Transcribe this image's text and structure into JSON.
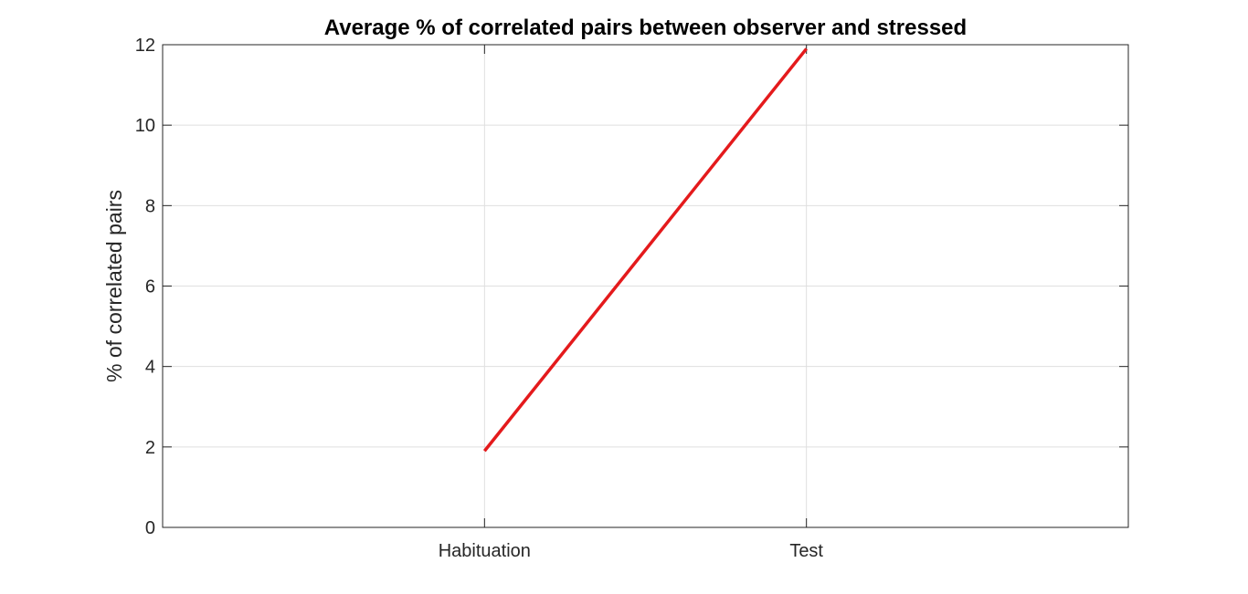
{
  "chart_data": {
    "type": "line",
    "title": "Average % of correlated pairs between observer and stressed",
    "xlabel": "",
    "ylabel": "% of correlated pairs",
    "categories": [
      "Habituation",
      "Test"
    ],
    "ylim": [
      0,
      12
    ],
    "yticks": [
      0,
      2,
      4,
      6,
      8,
      10,
      12
    ],
    "grid": true,
    "series": [
      {
        "values": [
          1.9,
          11.9
        ],
        "color": "#e41a1c"
      }
    ]
  }
}
